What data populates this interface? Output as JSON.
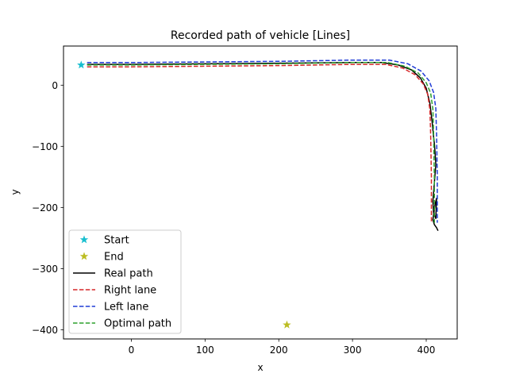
{
  "chart_data": {
    "type": "line",
    "title": "Recorded path of vehicle [Lines]",
    "xlabel": "x",
    "ylabel": "y",
    "xlim": [
      -92,
      442
    ],
    "ylim": [
      -415,
      64
    ],
    "xticks": [
      0,
      100,
      200,
      300,
      400
    ],
    "yticks": [
      0,
      -100,
      -200,
      -300,
      -400
    ],
    "xtick_labels": [
      "0",
      "100",
      "200",
      "300",
      "400"
    ],
    "ytick_labels": [
      "0",
      "−100",
      "−200",
      "−300",
      "−400"
    ],
    "legend_position": "lower-left",
    "markers": [
      {
        "name": "Start",
        "x": -68,
        "y": 33,
        "color": "#17becf",
        "marker": "star"
      },
      {
        "name": "End",
        "x": 211,
        "y": -392,
        "color": "#bcbd22",
        "marker": "star"
      }
    ],
    "series": [
      {
        "name": "Real path",
        "color": "#000000",
        "dash": "solid",
        "x": [
          -60,
          0,
          100,
          200,
          300,
          340,
          362,
          380,
          392,
          400,
          405,
          408,
          410,
          411,
          412,
          413,
          411,
          409,
          410,
          413,
          414,
          412,
          409,
          411,
          414,
          416
        ],
        "y": [
          34,
          34,
          35,
          36,
          37,
          37,
          33,
          25,
          12,
          -5,
          -30,
          -60,
          -85,
          -95,
          -110,
          -130,
          -160,
          -190,
          -210,
          -218,
          -185,
          -195,
          -220,
          -228,
          -233,
          -238
        ]
      },
      {
        "name": "Right lane",
        "color": "#d62728",
        "dash": "dashed",
        "x": [
          -60,
          0,
          100,
          200,
          300,
          345,
          368,
          385,
          396,
          402,
          405,
          406,
          407,
          407
        ],
        "y": [
          30,
          30,
          31,
          32,
          34,
          34,
          28,
          17,
          2,
          -15,
          -40,
          -80,
          -150,
          -225
        ],
        "values": [
          30,
          30,
          31,
          32,
          34,
          34,
          28,
          17,
          2,
          -15,
          -40,
          -80,
          -150,
          -225
        ]
      },
      {
        "name": "Left lane",
        "color": "#1f3bd6",
        "dash": "dashed",
        "x": [
          -60,
          0,
          100,
          200,
          300,
          350,
          375,
          393,
          404,
          410,
          413,
          414,
          415,
          415
        ],
        "y": [
          37,
          37,
          38,
          39,
          41,
          41,
          35,
          23,
          7,
          -12,
          -38,
          -80,
          -150,
          -225
        ],
        "values": [
          37,
          37,
          38,
          39,
          41,
          41,
          35,
          23,
          7,
          -12,
          -38,
          -80,
          -150,
          -225
        ]
      },
      {
        "name": "Optimal path",
        "color": "#2ca02c",
        "dash": "dashed",
        "x": [
          -60,
          0,
          100,
          200,
          300,
          348,
          371,
          389,
          400,
          406,
          409,
          410,
          411,
          411
        ],
        "y": [
          33,
          33,
          34,
          35,
          37,
          37,
          31,
          20,
          4,
          -13,
          -39,
          -80,
          -150,
          -225
        ],
        "values": [
          33,
          33,
          34,
          35,
          37,
          37,
          31,
          20,
          4,
          -13,
          -39,
          -80,
          -150,
          -225
        ]
      }
    ],
    "legend": [
      {
        "label": "Start",
        "kind": "marker",
        "color": "#17becf"
      },
      {
        "label": "End",
        "kind": "marker",
        "color": "#bcbd22"
      },
      {
        "label": "Real path",
        "kind": "line",
        "color": "#000000",
        "dash": "solid"
      },
      {
        "label": "Right lane",
        "kind": "line",
        "color": "#d62728",
        "dash": "dashed"
      },
      {
        "label": "Left lane",
        "kind": "line",
        "color": "#1f3bd6",
        "dash": "dashed"
      },
      {
        "label": "Optimal path",
        "kind": "line",
        "color": "#2ca02c",
        "dash": "dashed"
      }
    ]
  }
}
